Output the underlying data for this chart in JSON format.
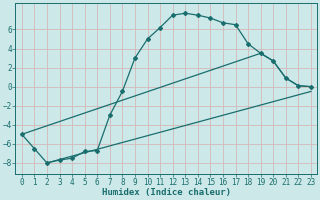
{
  "title": "",
  "xlabel": "Humidex (Indice chaleur)",
  "bg_color": "#cce8e8",
  "grid_color_major": "#e8c8c8",
  "grid_color_minor": "#d8e8e8",
  "line_color": "#1a6e6e",
  "xlim": [
    -0.5,
    23.5
  ],
  "ylim": [
    -9.2,
    8.8
  ],
  "yticks": [
    -8,
    -6,
    -4,
    -2,
    0,
    2,
    4,
    6
  ],
  "xticks": [
    0,
    1,
    2,
    3,
    4,
    5,
    6,
    7,
    8,
    9,
    10,
    11,
    12,
    13,
    14,
    15,
    16,
    17,
    18,
    19,
    20,
    21,
    22,
    23
  ],
  "line1_x": [
    0,
    1,
    2,
    3,
    4,
    5,
    6,
    7,
    8,
    9,
    10,
    11,
    12,
    13,
    14,
    15,
    16,
    17,
    18,
    19,
    20,
    21,
    22,
    23
  ],
  "line1_y": [
    -5.0,
    -6.5,
    -8.0,
    -7.7,
    -7.5,
    -6.8,
    -6.7,
    -3.0,
    -0.5,
    3.0,
    5.0,
    6.2,
    7.5,
    7.7,
    7.5,
    7.2,
    6.7,
    6.5,
    4.5,
    3.5,
    2.7,
    0.9,
    0.1,
    0.0
  ],
  "line2_x": [
    0,
    19,
    20,
    21,
    22,
    23
  ],
  "line2_y": [
    -5.0,
    3.5,
    2.7,
    0.9,
    0.1,
    0.0
  ],
  "line3_x": [
    2,
    23
  ],
  "line3_y": [
    -8.0,
    -0.5
  ],
  "xlabel_fontsize": 6.5,
  "tick_fontsize": 5.5
}
